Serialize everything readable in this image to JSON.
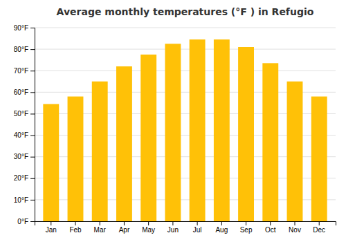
{
  "chart_data": {
    "type": "bar",
    "title": "Average monthly temperatures (°F ) in Refugio",
    "categories": [
      "Jan",
      "Feb",
      "Mar",
      "Apr",
      "May",
      "Jun",
      "Jul",
      "Aug",
      "Sep",
      "Oct",
      "Nov",
      "Dec"
    ],
    "values": [
      54.5,
      58.0,
      65.0,
      72.0,
      77.5,
      82.5,
      84.5,
      84.5,
      81.0,
      73.5,
      65.0,
      58.0
    ],
    "color": "#FFC107",
    "ylim": [
      0,
      90
    ],
    "yticks": [
      {
        "value": 0,
        "label": "0°F"
      },
      {
        "value": 10,
        "label": "10°F"
      },
      {
        "value": 20,
        "label": "20°F"
      },
      {
        "value": 30,
        "label": "30°F"
      },
      {
        "value": 40,
        "label": "40°F"
      },
      {
        "value": 50,
        "label": "50°F"
      },
      {
        "value": 60,
        "label": "60°F"
      },
      {
        "value": 70,
        "label": "70°F"
      },
      {
        "value": 80,
        "label": "80°F"
      },
      {
        "value": 90,
        "label": "90°F"
      }
    ],
    "grid": true
  }
}
